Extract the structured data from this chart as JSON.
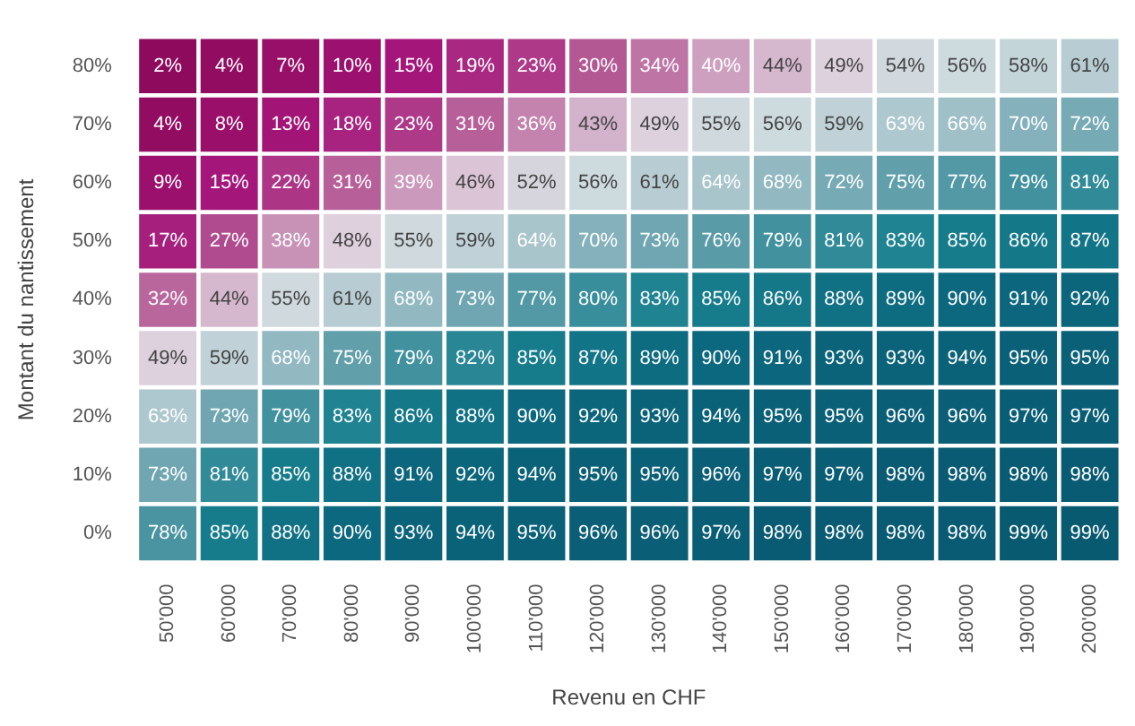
{
  "chart_data": {
    "type": "heatmap",
    "xlabel": "Revenu en CHF",
    "ylabel": "Montant du nantissement",
    "categories": [
      "50'000",
      "60'000",
      "70'000",
      "80'000",
      "90'000",
      "100'000",
      "110'000",
      "120'000",
      "130'000",
      "140'000",
      "150'000",
      "160'000",
      "170'000",
      "180'000",
      "190'000",
      "200'000"
    ],
    "y_categories": [
      "80%",
      "70%",
      "60%",
      "50%",
      "40%",
      "30%",
      "20%",
      "10%",
      "0%"
    ],
    "cells": [
      [
        2,
        4,
        7,
        10,
        15,
        19,
        23,
        30,
        34,
        40,
        44,
        49,
        54,
        56,
        58,
        61
      ],
      [
        4,
        8,
        13,
        18,
        23,
        31,
        36,
        43,
        49,
        55,
        56,
        59,
        63,
        66,
        70,
        72
      ],
      [
        9,
        15,
        22,
        31,
        39,
        46,
        52,
        56,
        61,
        64,
        68,
        72,
        75,
        77,
        79,
        81
      ],
      [
        17,
        27,
        38,
        48,
        55,
        59,
        64,
        70,
        73,
        76,
        79,
        81,
        83,
        85,
        86,
        87
      ],
      [
        32,
        44,
        55,
        61,
        68,
        73,
        77,
        80,
        83,
        85,
        86,
        88,
        89,
        90,
        91,
        92
      ],
      [
        49,
        59,
        68,
        75,
        79,
        82,
        85,
        87,
        89,
        90,
        91,
        93,
        93,
        94,
        95,
        95
      ],
      [
        63,
        73,
        79,
        83,
        86,
        88,
        90,
        92,
        93,
        94,
        95,
        95,
        96,
        96,
        97,
        97
      ],
      [
        73,
        81,
        85,
        88,
        91,
        92,
        94,
        95,
        95,
        96,
        97,
        97,
        98,
        98,
        98,
        98
      ],
      [
        78,
        85,
        88,
        90,
        93,
        94,
        95,
        96,
        96,
        97,
        98,
        98,
        98,
        98,
        99,
        99
      ]
    ],
    "cell_labels": [
      [
        "2%",
        "4%",
        "7%",
        "10%",
        "15%",
        "19%",
        "23%",
        "30%",
        "34%",
        "40%",
        "44%",
        "49%",
        "54%",
        "56%",
        "58%",
        "61%"
      ],
      [
        "4%",
        "8%",
        "13%",
        "18%",
        "23%",
        "31%",
        "36%",
        "43%",
        "49%",
        "55%",
        "56%",
        "59%",
        "63%",
        "66%",
        "70%",
        "72%"
      ],
      [
        "9%",
        "15%",
        "22%",
        "31%",
        "39%",
        "46%",
        "52%",
        "56%",
        "61%",
        "64%",
        "68%",
        "72%",
        "75%",
        "77%",
        "79%",
        "81%"
      ],
      [
        "17%",
        "27%",
        "38%",
        "48%",
        "55%",
        "59%",
        "64%",
        "70%",
        "73%",
        "76%",
        "79%",
        "81%",
        "83%",
        "85%",
        "86%",
        "87%"
      ],
      [
        "32%",
        "44%",
        "55%",
        "61%",
        "68%",
        "73%",
        "77%",
        "80%",
        "83%",
        "85%",
        "86%",
        "88%",
        "89%",
        "90%",
        "91%",
        "92%"
      ],
      [
        "49%",
        "59%",
        "68%",
        "75%",
        "79%",
        "82%",
        "85%",
        "87%",
        "89%",
        "90%",
        "91%",
        "93%",
        "93%",
        "94%",
        "95%",
        "95%"
      ],
      [
        "63%",
        "73%",
        "79%",
        "83%",
        "86%",
        "88%",
        "90%",
        "92%",
        "93%",
        "94%",
        "95%",
        "95%",
        "96%",
        "96%",
        "97%",
        "97%"
      ],
      [
        "73%",
        "81%",
        "85%",
        "88%",
        "91%",
        "92%",
        "94%",
        "95%",
        "95%",
        "96%",
        "97%",
        "97%",
        "98%",
        "98%",
        "98%",
        "98%"
      ],
      [
        "78%",
        "85%",
        "88%",
        "90%",
        "93%",
        "94%",
        "95%",
        "96%",
        "96%",
        "97%",
        "98%",
        "98%",
        "98%",
        "98%",
        "99%",
        "99%"
      ]
    ]
  }
}
